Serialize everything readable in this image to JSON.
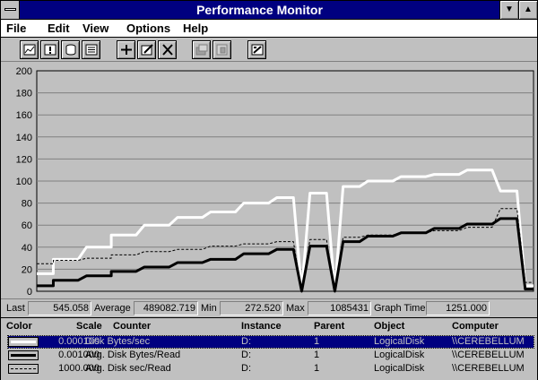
{
  "window": {
    "title": "Performance Monitor"
  },
  "title_buttons": {
    "minimize": "▼",
    "maximize": "▲"
  },
  "menu": [
    "File",
    "Edit",
    "View",
    "Options",
    "Help"
  ],
  "toolbar": [
    "chart-view-icon",
    "alert-view-icon",
    "log-view-icon",
    "report-view-icon",
    "add-counter-icon",
    "edit-counter-icon",
    "delete-counter-icon",
    "update-now-icon",
    "bookmark-icon",
    "options-icon"
  ],
  "chart_data": {
    "type": "line",
    "ylim": [
      0,
      200
    ],
    "yticks": [
      "0",
      "20",
      "40",
      "60",
      "80",
      "100",
      "120",
      "140",
      "160",
      "180",
      "200"
    ],
    "grid": "horizontal",
    "x_points": 17,
    "series": [
      {
        "name": "Disk Bytes/sec",
        "color": "#ffffff",
        "style": "thick-white",
        "plateaus": [
          [
            0,
            2,
            16
          ],
          [
            2,
            5,
            29
          ],
          [
            6,
            9,
            40
          ],
          [
            9,
            12,
            51
          ],
          [
            13,
            16,
            60
          ],
          [
            17,
            20,
            67
          ],
          [
            21,
            24,
            72
          ],
          [
            25,
            28,
            80
          ],
          [
            29,
            31,
            85
          ],
          [
            33,
            35,
            89
          ],
          [
            37,
            39,
            95
          ],
          [
            40,
            43,
            100
          ],
          [
            44,
            47,
            104
          ],
          [
            48,
            51,
            106
          ],
          [
            52,
            55,
            110
          ],
          [
            56,
            58,
            91
          ],
          [
            59,
            60,
            5
          ]
        ]
      },
      {
        "name": "Avg. Disk Bytes/Read",
        "color": "#000000",
        "style": "thick-black",
        "plateaus": [
          [
            0,
            2,
            5
          ],
          [
            2,
            5,
            10
          ],
          [
            6,
            9,
            14
          ],
          [
            9,
            12,
            18
          ],
          [
            13,
            16,
            22
          ],
          [
            17,
            20,
            26
          ],
          [
            21,
            24,
            29
          ],
          [
            25,
            28,
            34
          ],
          [
            29,
            31,
            38
          ],
          [
            33,
            35,
            41
          ],
          [
            37,
            39,
            45
          ],
          [
            40,
            43,
            50
          ],
          [
            44,
            47,
            53
          ],
          [
            48,
            51,
            57
          ],
          [
            52,
            55,
            61
          ],
          [
            56,
            58,
            66
          ],
          [
            59,
            60,
            2
          ]
        ]
      },
      {
        "name": "Avg. Disk sec/Read",
        "color": "#000000",
        "style": "dotted-black",
        "plateaus": [
          [
            0,
            2,
            25
          ],
          [
            2,
            5,
            28
          ],
          [
            6,
            9,
            30
          ],
          [
            9,
            12,
            33
          ],
          [
            13,
            16,
            36
          ],
          [
            17,
            20,
            38
          ],
          [
            21,
            24,
            41
          ],
          [
            25,
            28,
            43
          ],
          [
            29,
            31,
            45
          ],
          [
            33,
            35,
            47
          ],
          [
            37,
            39,
            49
          ],
          [
            40,
            43,
            51
          ],
          [
            44,
            47,
            53
          ],
          [
            48,
            51,
            55
          ],
          [
            52,
            55,
            58
          ],
          [
            56,
            58,
            75
          ],
          [
            59,
            60,
            8
          ]
        ]
      }
    ]
  },
  "stats": {
    "last_label": "Last",
    "last": "545.058",
    "average_label": "Average",
    "average": "489082.719",
    "min_label": "Min",
    "min": "272.520",
    "max_label": "Max",
    "max": "1085431",
    "graph_time_label": "Graph Time",
    "graph_time": "1251.000"
  },
  "legend": {
    "headers": {
      "color": "Color",
      "scale": "Scale",
      "counter": "Counter",
      "instance": "Instance",
      "parent": "Parent",
      "object": "Object",
      "computer": "Computer"
    },
    "rows": [
      {
        "scale": "0.000100",
        "counter": "Disk Bytes/sec",
        "instance": "D:",
        "parent": "1",
        "object": "LogicalDisk",
        "computer": "\\\\CEREBELLUM",
        "selected": true
      },
      {
        "scale": "0.001000",
        "counter": "Avg. Disk Bytes/Read",
        "instance": "D:",
        "parent": "1",
        "object": "LogicalDisk",
        "computer": "\\\\CEREBELLUM",
        "selected": false
      },
      {
        "scale": "1000.000",
        "counter": "Avg. Disk sec/Read",
        "instance": "D:",
        "parent": "1",
        "object": "LogicalDisk",
        "computer": "\\\\CEREBELLUM",
        "selected": false
      }
    ]
  }
}
